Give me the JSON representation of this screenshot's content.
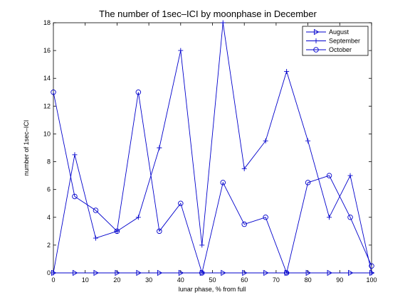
{
  "chart_data": {
    "type": "line",
    "title": "The number of 1sec–ICI by moonphase in December",
    "xlabel": "lunar phase, % from full",
    "ylabel": "number of 1sec–ICI",
    "xlim": [
      0,
      100
    ],
    "ylim": [
      0,
      18
    ],
    "xticks": [
      0,
      10,
      20,
      30,
      40,
      50,
      60,
      70,
      80,
      90,
      100
    ],
    "yticks": [
      0,
      2,
      4,
      6,
      8,
      10,
      12,
      14,
      16,
      18
    ],
    "grid": false,
    "legend_position": "top-right",
    "series": [
      {
        "name": "August",
        "marker": "triangle-right",
        "color": "#0000cc",
        "x": [
          0,
          6.7,
          13.3,
          20,
          26.7,
          33.3,
          40,
          46.7,
          53.3,
          60,
          66.7,
          73.3,
          80,
          86.7,
          93.3,
          100
        ],
        "y": [
          0,
          0,
          0,
          0,
          0,
          0,
          0,
          0,
          0,
          0,
          0,
          0,
          0,
          0,
          0,
          0
        ]
      },
      {
        "name": "September",
        "marker": "plus",
        "color": "#0000cc",
        "x": [
          0,
          6.7,
          13.3,
          20,
          26.7,
          33.3,
          40,
          46.7,
          53.3,
          60,
          66.7,
          73.3,
          80,
          86.7,
          93.3,
          100
        ],
        "y": [
          0,
          8.5,
          2.5,
          3,
          4,
          9,
          16,
          2,
          18,
          7.5,
          9.5,
          14.5,
          9.5,
          4,
          7,
          0
        ]
      },
      {
        "name": "October",
        "marker": "circle",
        "color": "#0000cc",
        "x": [
          0,
          6.7,
          13.3,
          20,
          26.7,
          33.3,
          40,
          46.7,
          53.3,
          60,
          66.7,
          73.3,
          80,
          86.7,
          93.3,
          100
        ],
        "y": [
          13,
          5.5,
          4.5,
          3,
          13,
          3,
          5,
          0,
          6.5,
          3.5,
          4,
          0,
          6.5,
          7,
          4,
          0.5
        ]
      }
    ]
  }
}
